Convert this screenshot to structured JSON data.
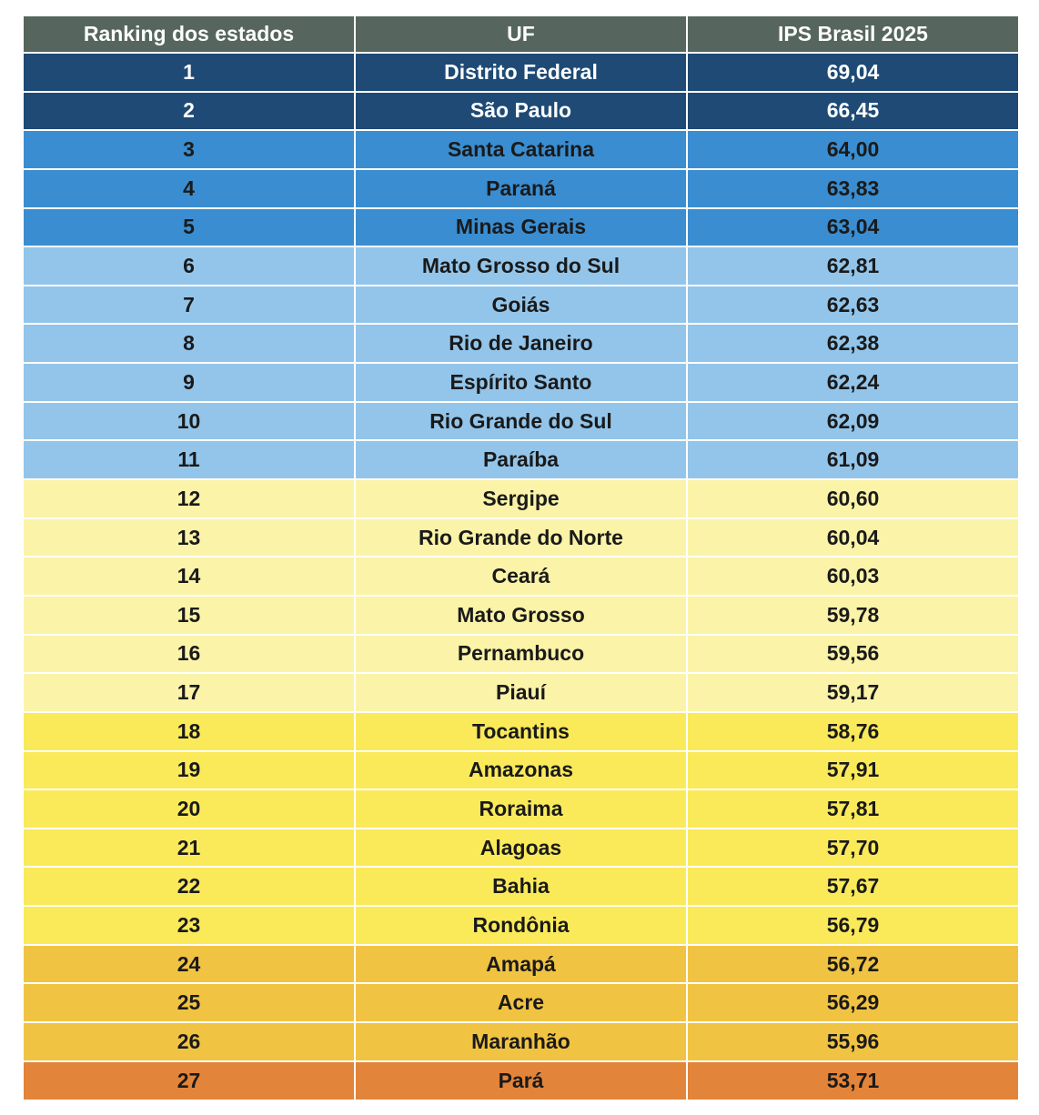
{
  "table": {
    "headers": [
      "Ranking dos estados",
      "UF",
      "IPS Brasil 2025"
    ]
  },
  "tiers": {
    "t1": {
      "bg": "#1e4a75",
      "fg": "#ffffff"
    },
    "t2": {
      "bg": "#3a8dd0",
      "fg": "#1a1a1a"
    },
    "t3": {
      "bg": "#93c5ea",
      "fg": "#1a1a1a"
    },
    "t4": {
      "bg": "#fbf3a8",
      "fg": "#1a1a1a"
    },
    "t5": {
      "bg": "#faea5a",
      "fg": "#1a1a1a"
    },
    "t6": {
      "bg": "#f1c342",
      "fg": "#1a1a1a"
    },
    "t7": {
      "bg": "#e2843a",
      "fg": "#1a1a1a"
    }
  },
  "chart_data": {
    "type": "table",
    "columns": [
      "Ranking dos estados",
      "UF",
      "IPS Brasil 2025"
    ],
    "rows": [
      {
        "rank": "1",
        "uf": "Distrito Federal",
        "ips": "69,04",
        "tier": "t1"
      },
      {
        "rank": "2",
        "uf": "São Paulo",
        "ips": "66,45",
        "tier": "t1"
      },
      {
        "rank": "3",
        "uf": "Santa Catarina",
        "ips": "64,00",
        "tier": "t2"
      },
      {
        "rank": "4",
        "uf": "Paraná",
        "ips": "63,83",
        "tier": "t2"
      },
      {
        "rank": "5",
        "uf": "Minas Gerais",
        "ips": "63,04",
        "tier": "t2"
      },
      {
        "rank": "6",
        "uf": "Mato Grosso do Sul",
        "ips": "62,81",
        "tier": "t3"
      },
      {
        "rank": "7",
        "uf": "Goiás",
        "ips": "62,63",
        "tier": "t3"
      },
      {
        "rank": "8",
        "uf": "Rio de Janeiro",
        "ips": "62,38",
        "tier": "t3"
      },
      {
        "rank": "9",
        "uf": "Espírito Santo",
        "ips": "62,24",
        "tier": "t3"
      },
      {
        "rank": "10",
        "uf": "Rio Grande do Sul",
        "ips": "62,09",
        "tier": "t3"
      },
      {
        "rank": "11",
        "uf": "Paraíba",
        "ips": "61,09",
        "tier": "t3"
      },
      {
        "rank": "12",
        "uf": "Sergipe",
        "ips": "60,60",
        "tier": "t4"
      },
      {
        "rank": "13",
        "uf": "Rio Grande do Norte",
        "ips": "60,04",
        "tier": "t4"
      },
      {
        "rank": "14",
        "uf": "Ceará",
        "ips": "60,03",
        "tier": "t4"
      },
      {
        "rank": "15",
        "uf": "Mato Grosso",
        "ips": "59,78",
        "tier": "t4"
      },
      {
        "rank": "16",
        "uf": "Pernambuco",
        "ips": "59,56",
        "tier": "t4"
      },
      {
        "rank": "17",
        "uf": "Piauí",
        "ips": "59,17",
        "tier": "t4"
      },
      {
        "rank": "18",
        "uf": "Tocantins",
        "ips": "58,76",
        "tier": "t5"
      },
      {
        "rank": "19",
        "uf": "Amazonas",
        "ips": "57,91",
        "tier": "t5"
      },
      {
        "rank": "20",
        "uf": "Roraima",
        "ips": "57,81",
        "tier": "t5"
      },
      {
        "rank": "21",
        "uf": "Alagoas",
        "ips": "57,70",
        "tier": "t5"
      },
      {
        "rank": "22",
        "uf": "Bahia",
        "ips": "57,67",
        "tier": "t5"
      },
      {
        "rank": "23",
        "uf": "Rondônia",
        "ips": "56,79",
        "tier": "t5"
      },
      {
        "rank": "24",
        "uf": "Amapá",
        "ips": "56,72",
        "tier": "t6"
      },
      {
        "rank": "25",
        "uf": "Acre",
        "ips": "56,29",
        "tier": "t6"
      },
      {
        "rank": "26",
        "uf": "Maranhão",
        "ips": "55,96",
        "tier": "t6"
      },
      {
        "rank": "27",
        "uf": "Pará",
        "ips": "53,71",
        "tier": "t7"
      }
    ]
  }
}
